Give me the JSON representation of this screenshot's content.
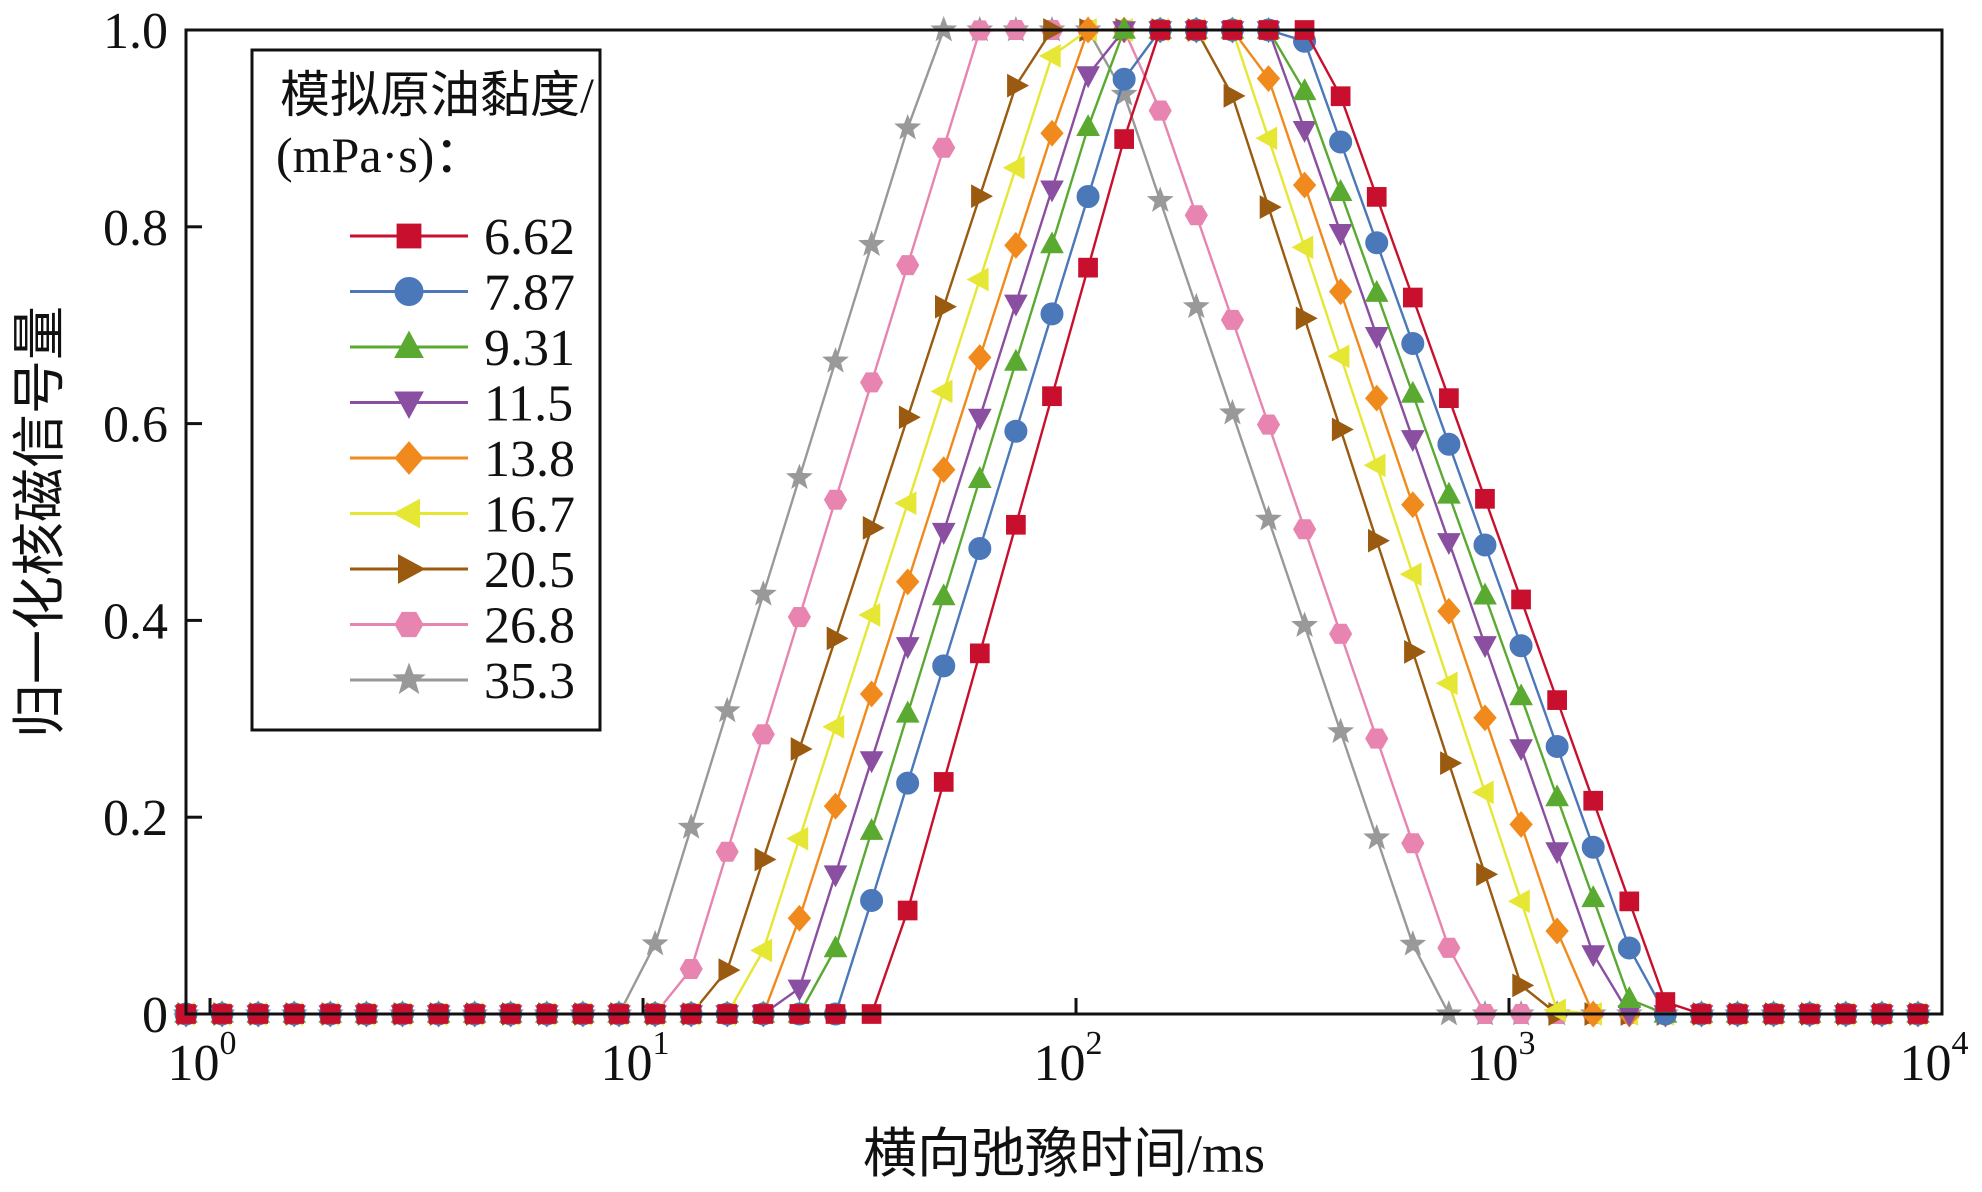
{
  "chart_data": {
    "type": "line",
    "title": "",
    "xlabel": "横向弛豫时间/ms",
    "ylabel": "归一化核磁信号量",
    "x_scale": "log",
    "xlim": [
      0.88,
      10000
    ],
    "ylim": [
      0,
      1.0
    ],
    "x_ticks": [
      {
        "value": 1,
        "base": "10",
        "exp": "0"
      },
      {
        "value": 10,
        "base": "10",
        "exp": "1"
      },
      {
        "value": 100,
        "base": "10",
        "exp": "2"
      },
      {
        "value": 1000,
        "base": "10",
        "exp": "3"
      },
      {
        "value": 10000,
        "base": "10",
        "exp": "4"
      }
    ],
    "y_ticks": [
      {
        "value": 0,
        "label": "0"
      },
      {
        "value": 0.2,
        "label": "0.2"
      },
      {
        "value": 0.4,
        "label": "0.4"
      },
      {
        "value": 0.6,
        "label": "0.6"
      },
      {
        "value": 0.8,
        "label": "0.8"
      },
      {
        "value": 1.0,
        "label": "1.0"
      }
    ],
    "grid": false,
    "legend": {
      "title_line1": "模拟原油黏度/",
      "title_line2": "(mPa·s)：",
      "placement": "top-left"
    },
    "sampling": {
      "x_start": 0.88,
      "points_per_decade": 12,
      "x_end": 10000
    },
    "series": [
      {
        "name": "6.62",
        "color": "#c8102e",
        "marker": "square",
        "start": 35,
        "peak_lo": 152,
        "peak_hi": 360,
        "end": 2350
      },
      {
        "name": "7.87",
        "color": "#4a78b8",
        "marker": "circle",
        "start": 28,
        "peak_lo": 140,
        "peak_hi": 330,
        "end": 2150
      },
      {
        "name": "9.31",
        "color": "#5aaa32",
        "marker": "triangle-up",
        "start": 25,
        "peak_lo": 125,
        "peak_hi": 300,
        "end": 1950
      },
      {
        "name": "11.5",
        "color": "#8a4fa0",
        "marker": "triangle-down",
        "start": 22,
        "peak_lo": 115,
        "peak_hi": 280,
        "end": 1750
      },
      {
        "name": "13.8",
        "color": "#f08a1c",
        "marker": "diamond",
        "start": 19.5,
        "peak_lo": 105,
        "peak_hi": 255,
        "end": 1500
      },
      {
        "name": "16.7",
        "color": "#e6e635",
        "marker": "triangle-left",
        "start": 17,
        "peak_lo": 92,
        "peak_hi": 230,
        "end": 1300
      },
      {
        "name": "20.5",
        "color": "#9a5a10",
        "marker": "triangle-right",
        "start": 14.5,
        "peak_lo": 80,
        "peak_hi": 205,
        "end": 1120
      },
      {
        "name": "26.8",
        "color": "#e884b0",
        "marker": "hexagon",
        "start": 12,
        "peak_lo": 60,
        "peak_hi": 135,
        "end": 820
      },
      {
        "name": "35.3",
        "color": "#999999",
        "marker": "star",
        "start": 9.5,
        "peak_lo": 48,
        "peak_hi": 115,
        "end": 680
      }
    ]
  }
}
